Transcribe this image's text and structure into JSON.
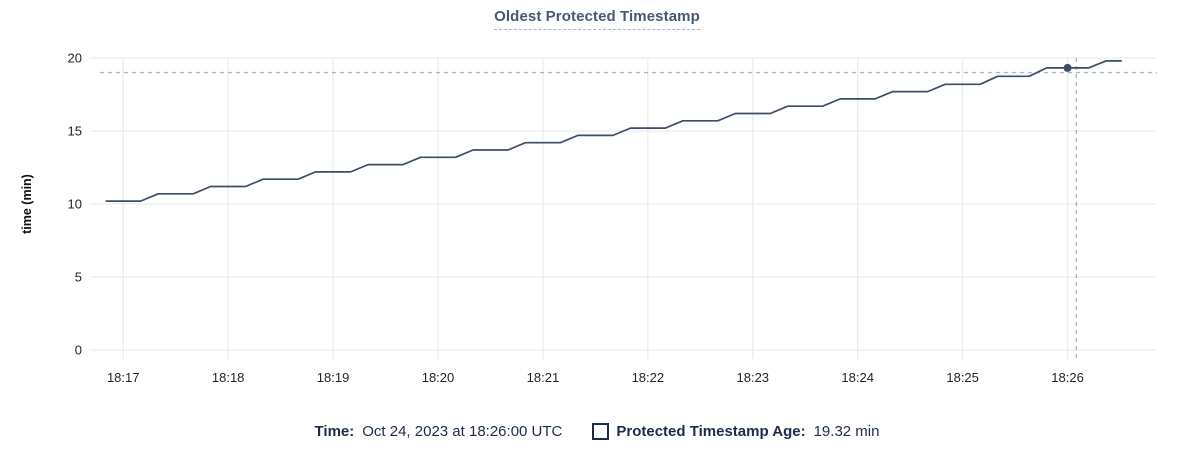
{
  "title": "Oldest Protected Timestamp",
  "footer": {
    "time_label": "Time:",
    "time_value": "Oct 24, 2023 at 18:26:00 UTC",
    "series_label": "Protected Timestamp Age:",
    "series_value": "19.32 min"
  },
  "colors": {
    "title": "#475872",
    "title_underline": "#a3b8cd",
    "series_line": "#3d4c68",
    "hover_point": "#3d4c68",
    "crosshair": "#a7b8c4",
    "gridline": "#ececec",
    "axis_text": "#242424",
    "legend_text": "#1d2c4e"
  },
  "chart_data": {
    "type": "line",
    "title": "Oldest Protected Timestamp",
    "xlabel": "",
    "ylabel": "time (min)",
    "ylim": [
      0,
      20
    ],
    "y_ticks": [
      0,
      5,
      10,
      15,
      20
    ],
    "x_tick_labels": [
      "18:17",
      "18:18",
      "18:19",
      "18:20",
      "18:21",
      "18:22",
      "18:23",
      "18:24",
      "18:25",
      "18:26"
    ],
    "x_tick_seconds": [
      0,
      60,
      120,
      180,
      240,
      300,
      360,
      420,
      480,
      540
    ],
    "x_domain_seconds": [
      -19,
      590
    ],
    "grid": true,
    "legend_position": "bottom",
    "series": [
      {
        "name": "Protected Timestamp Age",
        "unit": "min",
        "points": [
          [
            -10,
            10.2
          ],
          [
            10,
            10.2
          ],
          [
            20,
            10.7
          ],
          [
            40,
            10.7
          ],
          [
            50,
            11.2
          ],
          [
            70,
            11.2
          ],
          [
            80,
            11.7
          ],
          [
            100,
            11.7
          ],
          [
            110,
            12.2
          ],
          [
            130,
            12.2
          ],
          [
            140,
            12.7
          ],
          [
            160,
            12.7
          ],
          [
            170,
            13.2
          ],
          [
            190,
            13.2
          ],
          [
            200,
            13.7
          ],
          [
            220,
            13.7
          ],
          [
            230,
            14.2
          ],
          [
            250,
            14.2
          ],
          [
            260,
            14.7
          ],
          [
            280,
            14.7
          ],
          [
            290,
            15.2
          ],
          [
            310,
            15.2
          ],
          [
            320,
            15.7
          ],
          [
            340,
            15.7
          ],
          [
            350,
            16.2
          ],
          [
            370,
            16.2
          ],
          [
            380,
            16.7
          ],
          [
            400,
            16.7
          ],
          [
            410,
            17.2
          ],
          [
            430,
            17.2
          ],
          [
            440,
            17.7
          ],
          [
            460,
            17.7
          ],
          [
            470,
            18.2
          ],
          [
            490,
            18.2
          ],
          [
            500,
            18.75
          ],
          [
            518,
            18.75
          ],
          [
            528,
            19.32
          ],
          [
            552,
            19.32
          ],
          [
            562,
            19.8
          ],
          [
            571,
            19.8
          ]
        ]
      }
    ],
    "hover": {
      "time_text": "Oct 24, 2023 at 18:26:00 UTC",
      "point_t_sec": 540,
      "point_value": 19.32,
      "h_guide_value": 19.0,
      "v_guide_t_sec": 545
    }
  }
}
